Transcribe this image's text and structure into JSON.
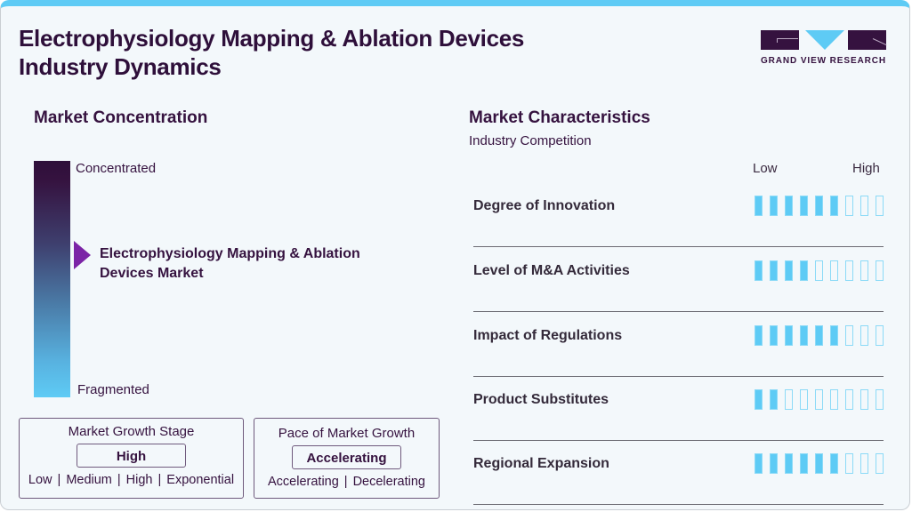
{
  "header": {
    "title_line1": "Electrophysiology Mapping & Ablation Devices",
    "title_line2": "Industry Dynamics",
    "logo_text": "GRAND VIEW RESEARCH"
  },
  "colors": {
    "brand_dark": "#35123f",
    "accent_blue": "#5ecbf5",
    "marker_purple": "#7b24a6",
    "background": "#f3f8fb"
  },
  "concentration": {
    "heading": "Market Concentration",
    "top_label": "Concentrated",
    "bottom_label": "Fragmented",
    "market_name": "Electrophysiology Mapping & Ablation Devices Market",
    "marker_icon": "triangle-right-icon"
  },
  "growth_stage": {
    "heading": "Market Growth Stage",
    "value": "High",
    "options": [
      "Low",
      "Medium",
      "High",
      "Exponential"
    ]
  },
  "growth_pace": {
    "heading": "Pace of Market Growth",
    "value": "Accelerating",
    "options": [
      "Accelerating",
      "Decelerating"
    ]
  },
  "characteristics": {
    "heading": "Market Characteristics",
    "subheading": "Industry Competition",
    "scale_low": "Low",
    "scale_high": "High",
    "max_level": 9,
    "items": [
      {
        "label": "Degree of Innovation",
        "level": 6
      },
      {
        "label": "Level of M&A Activities",
        "level": 4
      },
      {
        "label": "Impact of Regulations",
        "level": 6
      },
      {
        "label": "Product Substitutes",
        "level": 2
      },
      {
        "label": "Regional Expansion",
        "level": 6
      }
    ]
  }
}
